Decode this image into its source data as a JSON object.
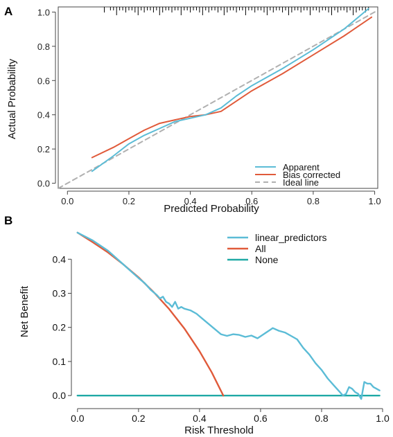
{
  "panels": [
    {
      "letter": "A"
    },
    {
      "letter": "B"
    }
  ],
  "chart_data": [
    {
      "type": "line",
      "xlabel": "Predicted Probability",
      "ylabel": "Actual Probability",
      "xlim": [
        -0.03,
        1.01
      ],
      "ylim": [
        -0.03,
        1.03
      ],
      "xticks": [
        0.0,
        0.2,
        0.4,
        0.6,
        0.8,
        1.0
      ],
      "xtick_labels": [
        "0.0",
        "0.2",
        "0.4",
        "0.6",
        "0.8",
        "1.0"
      ],
      "yticks": [
        0.0,
        0.2,
        0.4,
        0.6,
        0.8,
        1.0
      ],
      "ytick_labels": [
        "0.0",
        "0.2",
        "0.4",
        "0.6",
        "0.8",
        "1.0"
      ],
      "legend_position": "bottom-right",
      "series": [
        {
          "name": "Apparent",
          "color": "#5bbcd6",
          "style": "solid",
          "x": [
            0.08,
            0.15,
            0.2,
            0.25,
            0.3,
            0.35,
            0.4,
            0.45,
            0.5,
            0.55,
            0.6,
            0.7,
            0.8,
            0.9,
            0.98
          ],
          "y": [
            0.07,
            0.16,
            0.23,
            0.28,
            0.32,
            0.36,
            0.38,
            0.4,
            0.44,
            0.51,
            0.57,
            0.67,
            0.78,
            0.9,
            1.02
          ]
        },
        {
          "name": "Bias corrected",
          "color": "#e05a3a",
          "style": "solid",
          "x": [
            0.08,
            0.15,
            0.2,
            0.25,
            0.3,
            0.35,
            0.4,
            0.45,
            0.5,
            0.55,
            0.6,
            0.7,
            0.8,
            0.9,
            0.99
          ],
          "y": [
            0.15,
            0.21,
            0.26,
            0.31,
            0.35,
            0.37,
            0.39,
            0.4,
            0.42,
            0.48,
            0.54,
            0.64,
            0.75,
            0.86,
            0.97
          ]
        },
        {
          "name": "Ideal line",
          "color": "#b0b0b0",
          "style": "dashed",
          "x": [
            -0.03,
            1.01
          ],
          "y": [
            -0.03,
            1.01
          ]
        }
      ],
      "rug": [
        0.12,
        0.14,
        0.15,
        0.16,
        0.17,
        0.18,
        0.19,
        0.2,
        0.21,
        0.22,
        0.23,
        0.24,
        0.25,
        0.26,
        0.27,
        0.28,
        0.29,
        0.3,
        0.31,
        0.32,
        0.33,
        0.34,
        0.35,
        0.36,
        0.37,
        0.38,
        0.39,
        0.4,
        0.41,
        0.42,
        0.43,
        0.44,
        0.45,
        0.46,
        0.47,
        0.48,
        0.49,
        0.5,
        0.51,
        0.52,
        0.53,
        0.54,
        0.55,
        0.56,
        0.57,
        0.58,
        0.59,
        0.6,
        0.61,
        0.62,
        0.63,
        0.64,
        0.65,
        0.66,
        0.67,
        0.68,
        0.69,
        0.7,
        0.71,
        0.72,
        0.73,
        0.74,
        0.75,
        0.76,
        0.77,
        0.78,
        0.79,
        0.8,
        0.81,
        0.82,
        0.83,
        0.84,
        0.85,
        0.86,
        0.87,
        0.88,
        0.89,
        0.9,
        0.91,
        0.92,
        0.93,
        0.94,
        0.95,
        0.96,
        0.97,
        0.98
      ]
    },
    {
      "type": "line",
      "xlabel": "Risk Threshold",
      "ylabel": "Net Benefit",
      "xlim": [
        -0.02,
        1.0
      ],
      "ylim": [
        -0.02,
        0.49
      ],
      "xticks": [
        0.0,
        0.2,
        0.4,
        0.6,
        0.8,
        1.0
      ],
      "xtick_labels": [
        "0.0",
        "0.2",
        "0.4",
        "0.6",
        "0.8",
        "1.0"
      ],
      "yticks": [
        0.0,
        0.1,
        0.2,
        0.3,
        0.4
      ],
      "ytick_labels": [
        "0.0",
        "0.1",
        "0.2",
        "0.3",
        "0.4"
      ],
      "legend_position": "top-right",
      "series": [
        {
          "name": "linear_predictors",
          "color": "#5bbcd6",
          "style": "solid",
          "x": [
            0.0,
            0.05,
            0.1,
            0.15,
            0.2,
            0.22,
            0.24,
            0.26,
            0.27,
            0.28,
            0.29,
            0.3,
            0.31,
            0.32,
            0.33,
            0.34,
            0.35,
            0.37,
            0.39,
            0.41,
            0.43,
            0.45,
            0.47,
            0.49,
            0.51,
            0.53,
            0.55,
            0.57,
            0.59,
            0.61,
            0.63,
            0.64,
            0.66,
            0.68,
            0.7,
            0.72,
            0.74,
            0.76,
            0.78,
            0.8,
            0.82,
            0.84,
            0.85,
            0.86,
            0.87,
            0.88,
            0.89,
            0.9,
            0.91,
            0.92,
            0.93,
            0.94,
            0.95,
            0.96,
            0.97,
            0.98,
            0.99
          ],
          "y": [
            0.478,
            0.455,
            0.425,
            0.385,
            0.345,
            0.33,
            0.31,
            0.295,
            0.285,
            0.29,
            0.275,
            0.27,
            0.26,
            0.275,
            0.255,
            0.26,
            0.255,
            0.25,
            0.24,
            0.225,
            0.21,
            0.195,
            0.18,
            0.175,
            0.18,
            0.178,
            0.172,
            0.176,
            0.168,
            0.18,
            0.192,
            0.198,
            0.19,
            0.185,
            0.175,
            0.165,
            0.14,
            0.12,
            0.095,
            0.075,
            0.05,
            0.03,
            0.02,
            0.01,
            0.0,
            0.005,
            0.025,
            0.02,
            0.01,
            0.005,
            -0.01,
            0.04,
            0.035,
            0.035,
            0.025,
            0.02,
            0.015
          ]
        },
        {
          "name": "All",
          "color": "#e05a3a",
          "style": "solid",
          "x": [
            0.0,
            0.05,
            0.1,
            0.15,
            0.2,
            0.25,
            0.3,
            0.35,
            0.4,
            0.44,
            0.478
          ],
          "y": [
            0.478,
            0.45,
            0.42,
            0.385,
            0.347,
            0.303,
            0.254,
            0.197,
            0.13,
            0.068,
            0.0
          ]
        },
        {
          "name": "None",
          "color": "#1fa9a5",
          "style": "solid",
          "x": [
            0.0,
            0.99
          ],
          "y": [
            0.0,
            0.0
          ]
        }
      ]
    }
  ]
}
